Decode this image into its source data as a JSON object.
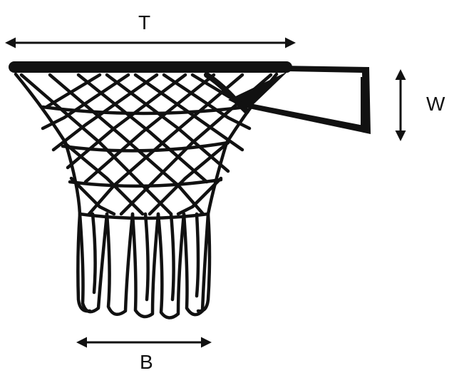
{
  "diagram": {
    "labels": {
      "top": "T",
      "side": "W",
      "bottom": "B"
    },
    "colors": {
      "ink": "#111111",
      "background": "#ffffff"
    },
    "parts": [
      "rim",
      "bracket",
      "net",
      "top-dimension-arrow",
      "side-dimension-arrow",
      "bottom-dimension-arrow"
    ]
  }
}
